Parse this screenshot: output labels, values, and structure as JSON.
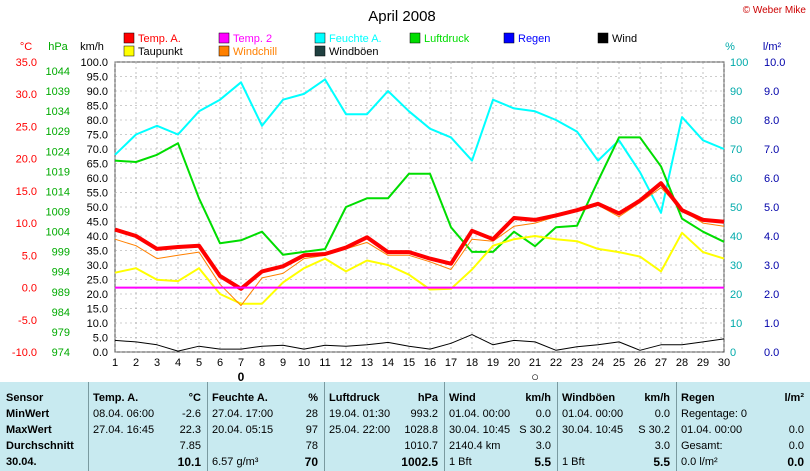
{
  "title": "April 2008",
  "copyright": "© Weber Mike",
  "legend": [
    {
      "name": "Temp. A.",
      "color": "#ff0000"
    },
    {
      "name": "Temp. 2",
      "color": "#ff00ff"
    },
    {
      "name": "Feuchte A.",
      "color": "#00ffff"
    },
    {
      "name": "Luftdruck",
      "color": "#00dd00"
    },
    {
      "name": "Regen",
      "color": "#0000ff"
    },
    {
      "name": "Wind",
      "color": "#000000"
    },
    {
      "name": "Taupunkt",
      "color": "#ffff00"
    },
    {
      "name": "Windchill",
      "color": "#ff8000"
    },
    {
      "name": "Windböen",
      "color": "#204040"
    }
  ],
  "axis_units": {
    "temp": "°C",
    "press": "hPa",
    "wind": "km/h",
    "hum": "%",
    "rain": "l/m²"
  },
  "chart_data": {
    "type": "line",
    "x": [
      1,
      2,
      3,
      4,
      5,
      6,
      7,
      8,
      9,
      10,
      11,
      12,
      13,
      14,
      15,
      16,
      17,
      18,
      19,
      20,
      21,
      22,
      23,
      24,
      25,
      26,
      27,
      28,
      29,
      30
    ],
    "axes": {
      "temp": {
        "label": "°C",
        "min": -10,
        "max": 35,
        "ticks": [
          "35.0",
          "30.0",
          "25.0",
          "20.0",
          "15.0",
          "10.0",
          "5.0",
          "0.0",
          "-5.0",
          "-10.0"
        ]
      },
      "press": {
        "label": "hPa",
        "ticks": [
          "1044",
          "1039",
          "1034",
          "1029",
          "1024",
          "1019",
          "1014",
          "1009",
          "1004",
          "999",
          "994",
          "989",
          "984",
          "979",
          "974"
        ]
      },
      "wind": {
        "label": "km/h",
        "min": 0,
        "max": 100,
        "ticks": [
          "100.0",
          "95.0",
          "90.0",
          "85.0",
          "80.0",
          "75.0",
          "70.0",
          "65.0",
          "60.0",
          "55.0",
          "50.0",
          "45.0",
          "40.0",
          "35.0",
          "30.0",
          "25.0",
          "20.0",
          "15.0",
          "10.0",
          "5.0",
          "0.0"
        ]
      },
      "hum": {
        "label": "%",
        "min": 0,
        "max": 100,
        "ticks": [
          "100",
          "90",
          "80",
          "70",
          "60",
          "50",
          "40",
          "30",
          "20",
          "10",
          "0"
        ]
      },
      "rain": {
        "label": "l/m²",
        "min": 0,
        "max": 10,
        "ticks": [
          "10.0",
          "9.0",
          "8.0",
          "7.0",
          "6.0",
          "5.0",
          "4.0",
          "3.0",
          "2.0",
          "1.0",
          "0.0"
        ]
      }
    },
    "series": [
      {
        "name": "Feuchte A.",
        "axis": "hum",
        "color": "#00ffff",
        "width": 2,
        "values": [
          68,
          75,
          78,
          75,
          83,
          87,
          93,
          78,
          87,
          89,
          94,
          82,
          82,
          90,
          83,
          77,
          74,
          66,
          87,
          84,
          83,
          80,
          76,
          66,
          73,
          62,
          48,
          81,
          73,
          70
        ]
      },
      {
        "name": "Luftdruck",
        "axis": "wind",
        "color": "#00dd00",
        "width": 2,
        "values": [
          66,
          65.5,
          68,
          72,
          53,
          37.5,
          38.5,
          41.5,
          33.5,
          34.5,
          35.5,
          50,
          53,
          53,
          61.5,
          61.5,
          43,
          34.5,
          34.5,
          41.5,
          36.5,
          43,
          43.5,
          59,
          74,
          74,
          64,
          46,
          41.5,
          38
        ]
      },
      {
        "name": "Taupunkt",
        "axis": "temp",
        "color": "#ffff00",
        "width": 2,
        "values": [
          2.3,
          3.0,
          1.2,
          1.0,
          3.0,
          -1.0,
          -2.5,
          -2.5,
          0.8,
          3.0,
          4.5,
          2.5,
          4.2,
          3.5,
          2.0,
          -0.3,
          -0.2,
          2.8,
          6.5,
          7.5,
          8.0,
          7.5,
          7.2,
          6.0,
          5.5,
          4.8,
          2.5,
          8.5,
          5.5,
          4.5
        ]
      },
      {
        "name": "Windchill",
        "axis": "temp",
        "color": "#ff8000",
        "width": 1,
        "values": [
          7.5,
          6.5,
          4.5,
          5.0,
          5.5,
          0.5,
          -2.8,
          1.5,
          2.2,
          4.5,
          5.0,
          6.0,
          7.0,
          5.0,
          5.0,
          4.0,
          2.8,
          7.5,
          7.2,
          9.5,
          10.0,
          11.0,
          12.0,
          12.8,
          11.0,
          13.2,
          15.5,
          12.0,
          10.0,
          9.5
        ]
      },
      {
        "name": "Temp. A.",
        "axis": "temp",
        "color": "#ff0000",
        "width": 4,
        "values": [
          9.0,
          8.0,
          6.0,
          6.3,
          6.5,
          1.8,
          -0.2,
          2.5,
          3.3,
          5.0,
          5.2,
          6.2,
          7.8,
          5.5,
          5.5,
          4.5,
          3.7,
          8.8,
          7.5,
          10.8,
          10.5,
          11.2,
          12.0,
          13.0,
          11.5,
          13.5,
          16.2,
          12.0,
          10.5,
          10.2
        ]
      },
      {
        "name": "Temp. 2",
        "axis": "temp",
        "color": "#ff00ff",
        "width": 2,
        "values": [
          0,
          0,
          0,
          0,
          0,
          0,
          0,
          0,
          0,
          0,
          0,
          0,
          0,
          0,
          0,
          0,
          0,
          0,
          0,
          0,
          0,
          0,
          0,
          0,
          0,
          0,
          0,
          0,
          0,
          0
        ]
      },
      {
        "name": "Wind",
        "axis": "wind",
        "color": "#000000",
        "width": 1,
        "values": [
          4,
          3.5,
          2.5,
          0.3,
          2,
          1,
          1,
          2,
          2.3,
          1,
          2.3,
          2,
          2.5,
          3.3,
          2,
          1,
          3,
          6,
          2.5,
          4,
          3.5,
          0.6,
          1.8,
          2.5,
          3.5,
          0.6,
          2.5,
          2.5,
          3.5,
          4.5
        ]
      }
    ],
    "grid": true,
    "annotations": [
      "0",
      "○"
    ]
  },
  "table": {
    "columns": [
      {
        "header": "Sensor",
        "rows": [
          "MinWert",
          "MaxWert",
          "Durchschnitt",
          "30.04."
        ]
      },
      {
        "header": "Temp. A.",
        "unit": "°C",
        "rows": [
          [
            "08.04.  06:00",
            "-2.6"
          ],
          [
            "27.04.  16:45",
            "22.3"
          ],
          [
            "",
            "7.85"
          ],
          [
            "",
            "10.1"
          ]
        ]
      },
      {
        "header": "Feuchte A.",
        "unit": "%",
        "rows": [
          [
            "27.04.  17:00",
            "28"
          ],
          [
            "20.04.  05:15",
            "97"
          ],
          [
            "",
            "78"
          ],
          [
            "6.57 g/m³",
            "70"
          ]
        ]
      },
      {
        "header": "Luftdruck",
        "unit": "hPa",
        "rows": [
          [
            "19.04.  01:30",
            "993.2"
          ],
          [
            "25.04.  22:00",
            "1028.8"
          ],
          [
            "",
            "1010.7"
          ],
          [
            "",
            "1002.5"
          ]
        ]
      },
      {
        "header": "Wind",
        "unit": "km/h",
        "rows": [
          [
            "01.04.  00:00",
            "0.0"
          ],
          [
            "30.04.  10:45",
            "S 30.2"
          ],
          [
            "2140.4 km",
            "3.0"
          ],
          [
            "1 Bft",
            "5.5"
          ]
        ]
      },
      {
        "header": "Windböen",
        "unit": "km/h",
        "rows": [
          [
            "01.04.  00:00",
            "0.0"
          ],
          [
            "30.04.  10:45",
            "S 30.2"
          ],
          [
            "",
            "3.0"
          ],
          [
            "1 Bft",
            "5.5"
          ]
        ]
      },
      {
        "header": "Regen",
        "unit": "l/m²",
        "rows": [
          [
            "Regentage: 0",
            ""
          ],
          [
            "01.04.  00:00",
            "0.0"
          ],
          [
            "Gesamt:",
            "0.0"
          ],
          [
            "0.0 l/m²",
            "0.0"
          ]
        ]
      }
    ]
  }
}
